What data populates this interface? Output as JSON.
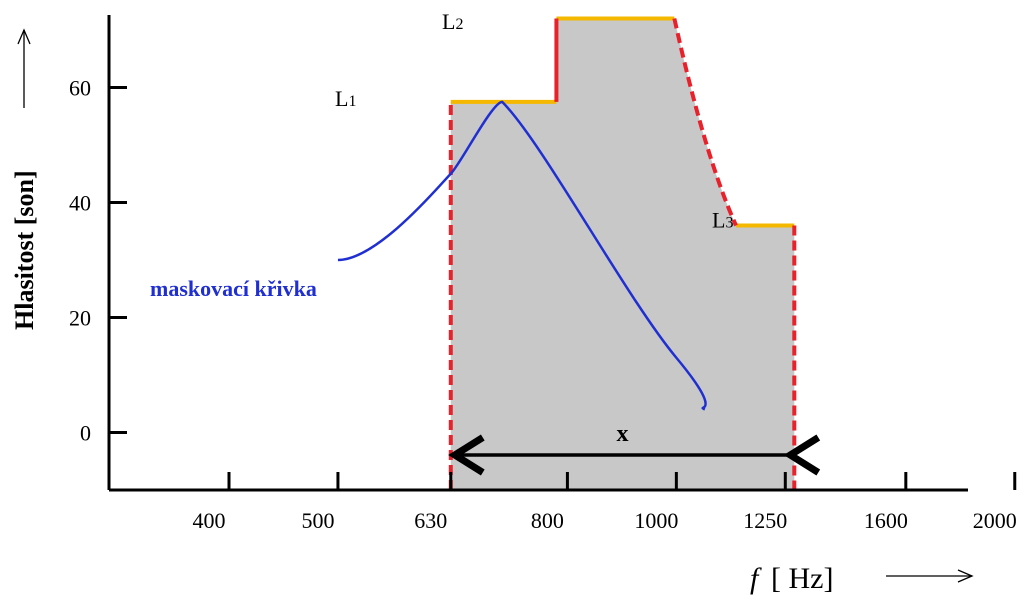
{
  "chart_data": {
    "type": "area",
    "ylabel": "Hlasitost [son]",
    "xlabel_symbol": "f",
    "xlabel_unit": "[ Hz]",
    "x_ticks": [
      "400",
      "500",
      "630",
      "800",
      "1000",
      "1250",
      "1600",
      "2000"
    ],
    "y_ticks": [
      0,
      20,
      40,
      60
    ],
    "ylim": [
      -10,
      73
    ],
    "levels": [
      {
        "name": "L",
        "sub": "1",
        "x_start": "630",
        "x_end": "800",
        "value": 57.5
      },
      {
        "name": "L",
        "sub": "2",
        "x_start": "800",
        "x_end": "1000",
        "value": 72
      },
      {
        "name": "L",
        "sub": "3",
        "x_start": "1250",
        "x_end": "1250",
        "value": 36
      }
    ],
    "masking_curve": {
      "name": "maskovací křivka",
      "color": "#1f2fd1",
      "points": [
        {
          "x": "500",
          "y": 30
        },
        {
          "x": "630",
          "y": 45
        },
        {
          "x": "700",
          "y": 57.5
        },
        {
          "x": "1000",
          "y": 13
        },
        {
          "x": "1060",
          "y": 4
        }
      ]
    },
    "bandwidth_label": "x",
    "colors": {
      "fill": "#c8c8c8",
      "edge": "#e8212b",
      "level": "#f5b800",
      "curve": "#1f2fd1",
      "axis": "#000000"
    }
  }
}
